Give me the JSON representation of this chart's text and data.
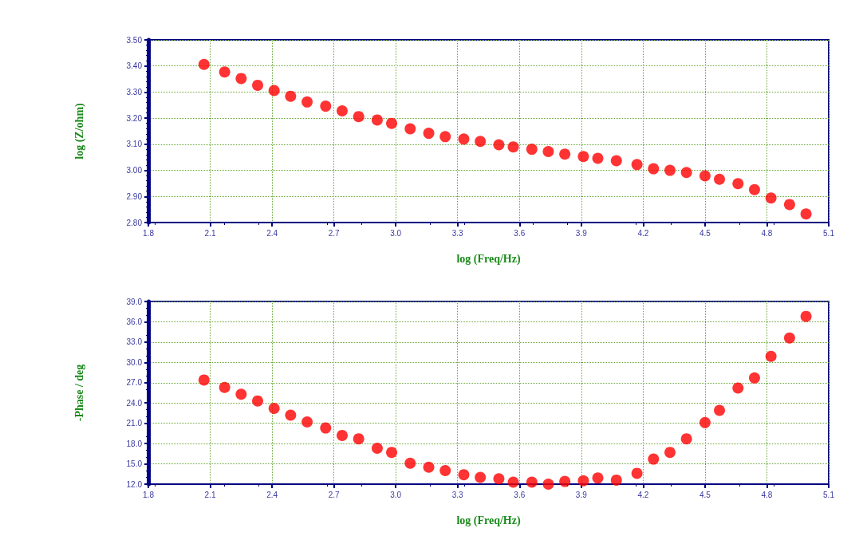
{
  "chart_data": [
    {
      "type": "scatter",
      "ylabel": "log (Z/ohm)",
      "xlabel": "log (Freq/Hz)",
      "marker": "circle",
      "grid": true,
      "xlim": [
        1.8,
        5.1
      ],
      "xticks": [
        1.8,
        2.1,
        2.4,
        2.7,
        {
          "value": 3,
          "label": "3.0"
        },
        3.3,
        3.6,
        3.9,
        4.2,
        4.5,
        4.8,
        5.1
      ],
      "ylim": [
        2.8,
        3.5
      ],
      "yticks": [
        {
          "value": 2.8,
          "label": "2.80"
        },
        {
          "value": 2.9,
          "label": "2.90"
        },
        {
          "value": 3,
          "label": "3.00"
        },
        {
          "value": 3.1,
          "label": "3.10"
        },
        {
          "value": 3.2,
          "label": "3.20"
        },
        {
          "value": 3.3,
          "label": "3.30"
        },
        {
          "value": 3.4,
          "label": "3.40"
        },
        {
          "value": 3.5,
          "label": "3.50"
        }
      ],
      "x": [
        2.07,
        2.17,
        2.25,
        2.33,
        2.41,
        2.49,
        2.57,
        2.66,
        2.74,
        2.82,
        2.91,
        2.98,
        3.07,
        3.16,
        3.24,
        3.33,
        3.41,
        3.5,
        3.57,
        3.66,
        3.74,
        3.82,
        3.91,
        3.98,
        4.07,
        4.17,
        4.25,
        4.33,
        4.41,
        4.5,
        4.57,
        4.66,
        4.74,
        4.82,
        4.91,
        4.99
      ],
      "series": [
        {
          "color": "#ff0000",
          "values": [
            3.406,
            3.377,
            3.352,
            3.326,
            3.306,
            3.284,
            3.262,
            3.246,
            3.228,
            3.206,
            3.193,
            3.18,
            3.159,
            3.142,
            3.129,
            3.12,
            3.111,
            3.098,
            3.09,
            3.081,
            3.072,
            3.062,
            3.053,
            3.046,
            3.037,
            3.022,
            3.006,
            3,
            2.992,
            2.979,
            2.966,
            2.949,
            2.926,
            2.894,
            2.869,
            2.833
          ]
        }
      ]
    },
    {
      "type": "scatter",
      "ylabel": "-Phase / deg",
      "xlabel": "log (Freq/Hz)",
      "marker": "circle",
      "grid": true,
      "xlim": [
        1.8,
        5.1
      ],
      "xticks": [
        1.8,
        2.1,
        2.4,
        2.7,
        {
          "value": 3,
          "label": "3.0"
        },
        3.3,
        3.6,
        3.9,
        4.2,
        4.5,
        4.8,
        5.1
      ],
      "ylim": [
        12,
        39
      ],
      "yticks": [
        {
          "value": 12,
          "label": "12.0"
        },
        {
          "value": 15,
          "label": "15.0"
        },
        {
          "value": 18,
          "label": "18.0"
        },
        {
          "value": 21,
          "label": "21.0"
        },
        {
          "value": 24,
          "label": "24.0"
        },
        {
          "value": 27,
          "label": "27.0"
        },
        {
          "value": 30,
          "label": "30.0"
        },
        {
          "value": 33,
          "label": "33.0"
        },
        {
          "value": 36,
          "label": "36.0"
        },
        {
          "value": 39,
          "label": "39.0"
        }
      ],
      "x": [
        2.07,
        2.17,
        2.25,
        2.33,
        2.41,
        2.49,
        2.57,
        2.66,
        2.74,
        2.82,
        2.91,
        2.98,
        3.07,
        3.16,
        3.24,
        3.33,
        3.41,
        3.5,
        3.57,
        3.66,
        3.74,
        3.82,
        3.91,
        3.98,
        4.07,
        4.17,
        4.25,
        4.33,
        4.41,
        4.5,
        4.57,
        4.66,
        4.74,
        4.82,
        4.91,
        4.99
      ],
      "series": [
        {
          "color": "#ff0000",
          "values": [
            27.4,
            26.3,
            25.3,
            24.3,
            23.2,
            22.2,
            21.2,
            20.3,
            19.2,
            18.7,
            17.3,
            16.7,
            15.1,
            14.5,
            14,
            13.4,
            13,
            12.8,
            12.3,
            12.3,
            12,
            12.4,
            12.5,
            12.9,
            12.6,
            13.6,
            15.7,
            16.7,
            18.7,
            21.1,
            22.9,
            26.2,
            27.7,
            30.9,
            33.6,
            36.8
          ]
        }
      ]
    }
  ]
}
